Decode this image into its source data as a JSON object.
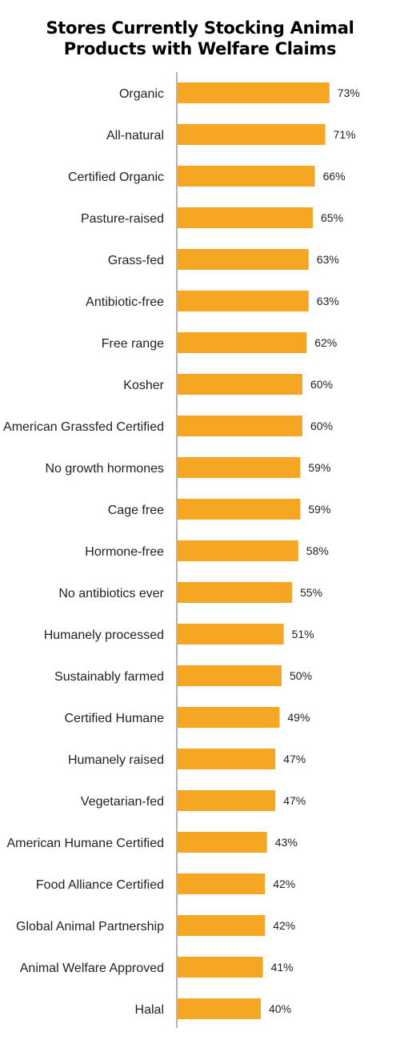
{
  "title": {
    "line1": "Stores Currently Stocking Animal",
    "line2": "Products with Welfare Claims"
  },
  "colors": {
    "bar": "#F5A623",
    "axis": "#9a9a9a",
    "text": "#222222"
  },
  "chart_data": {
    "type": "bar",
    "orientation": "horizontal",
    "title": "Stores Currently Stocking Animal Products with Welfare Claims",
    "categories": [
      "Organic",
      "All-natural",
      "Certified Organic",
      "Pasture-raised",
      "Grass-fed",
      "Antibiotic-free",
      "Free range",
      "Kosher",
      "American Grassfed Certified",
      "No growth hormones",
      "Cage free",
      "Hormone-free",
      "No antibiotics ever",
      "Humanely processed",
      "Sustainably farmed",
      "Certified Humane",
      "Humanely raised",
      "Vegetarian-fed",
      "American Humane Certified",
      "Food Alliance Certified",
      "Global Animal Partnership",
      "Animal Welfare Approved",
      "Halal"
    ],
    "values": [
      73,
      71,
      66,
      65,
      63,
      63,
      62,
      60,
      60,
      59,
      59,
      58,
      55,
      51,
      50,
      49,
      47,
      47,
      43,
      42,
      42,
      41,
      40
    ],
    "value_labels": [
      "73%",
      "71%",
      "66%",
      "65%",
      "63%",
      "63%",
      "62%",
      "60%",
      "60%",
      "59%",
      "59%",
      "58%",
      "55%",
      "51%",
      "50%",
      "49%",
      "47%",
      "47%",
      "43%",
      "42%",
      "42%",
      "41%",
      "40%"
    ],
    "xlabel": "",
    "ylabel": "",
    "xlim": [
      0,
      100
    ],
    "grid": false,
    "legend": "none"
  }
}
